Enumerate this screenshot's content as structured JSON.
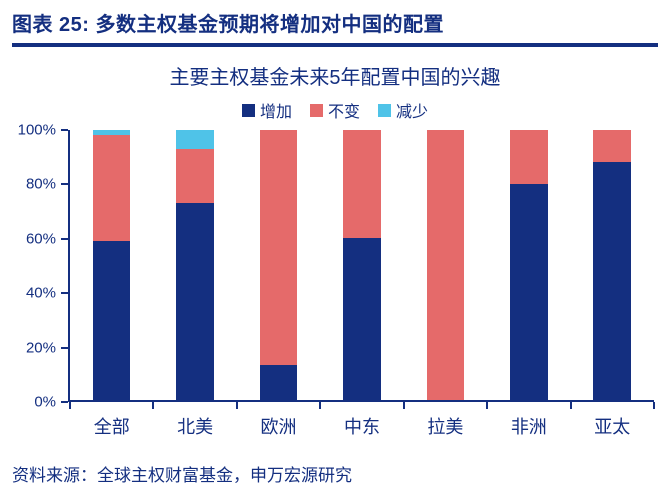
{
  "header": {
    "title": "图表 25: 多数主权基金预期将增加对中国的配置"
  },
  "footer": {
    "source": "资料来源：全球主权财富基金，申万宏源研究"
  },
  "colors": {
    "navy": "#142f80",
    "increase": "#142f80",
    "unchanged": "#e56a6a",
    "decrease": "#4fc3e8"
  },
  "chart_data": {
    "type": "bar",
    "stacked": true,
    "title": "主要主权基金未来5年配置中国的兴趣",
    "categories": [
      "全部",
      "北美",
      "欧洲",
      "中东",
      "拉美",
      "非洲",
      "亚太"
    ],
    "series": [
      {
        "name": "增加",
        "color": "#142f80",
        "values": [
          59,
          73,
          13,
          60,
          0,
          80,
          88
        ]
      },
      {
        "name": "不变",
        "color": "#e56a6a",
        "values": [
          39,
          20,
          87,
          40,
          100,
          20,
          12
        ]
      },
      {
        "name": "减少",
        "color": "#4fc3e8",
        "values": [
          2,
          7,
          0,
          0,
          0,
          0,
          0
        ]
      }
    ],
    "ylabel": "",
    "xlabel": "",
    "ylim": [
      0,
      100
    ],
    "ytick_step": 20,
    "ytick_labels": [
      "0%",
      "20%",
      "40%",
      "60%",
      "80%",
      "100%"
    ],
    "legend_position": "top",
    "grid": false
  }
}
